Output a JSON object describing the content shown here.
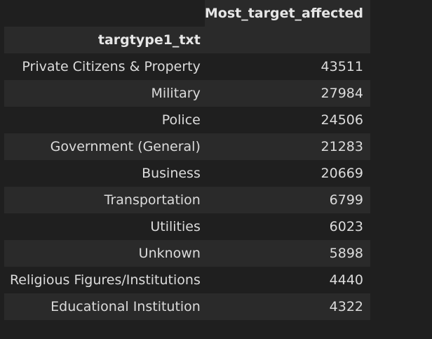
{
  "table": {
    "column_header": "Most_target_affected",
    "index_name": "targtype1_txt",
    "rows": [
      {
        "label": "Private Citizens & Property",
        "value": "43511"
      },
      {
        "label": "Military",
        "value": "27984"
      },
      {
        "label": "Police",
        "value": "24506"
      },
      {
        "label": "Government (General)",
        "value": "21283"
      },
      {
        "label": "Business",
        "value": "20669"
      },
      {
        "label": "Transportation",
        "value": "6799"
      },
      {
        "label": "Utilities",
        "value": "6023"
      },
      {
        "label": "Unknown",
        "value": "5898"
      },
      {
        "label": "Religious Figures/Institutions",
        "value": "4440"
      },
      {
        "label": "Educational Institution",
        "value": "4322"
      }
    ]
  },
  "colors": {
    "background": "#1f1f1f",
    "row_alt": "#2a2a2a",
    "text": "#dcdcdc"
  }
}
